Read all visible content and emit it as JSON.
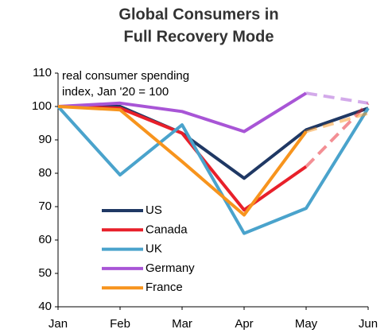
{
  "chart_data": {
    "type": "line",
    "title": [
      "Global Consumers in",
      "Full Recovery Mode"
    ],
    "annotation": [
      "real consumer spending",
      "index, Jan '20 = 100"
    ],
    "categories": [
      "Jan",
      "Feb",
      "Mar",
      "Apr",
      "May",
      "Jun"
    ],
    "series": [
      {
        "name": "US",
        "color": "#1f3864",
        "values": [
          100,
          100,
          92,
          78.5,
          93,
          99.5
        ],
        "dashed_tail": false
      },
      {
        "name": "Canada",
        "color": "#e8202a",
        "values": [
          100,
          99.5,
          92,
          69,
          82,
          101
        ],
        "dashed_tail": true
      },
      {
        "name": "UK",
        "color": "#4aa3cc",
        "values": [
          100,
          79.5,
          94.5,
          62,
          69.5,
          99.5
        ],
        "dashed_tail": false
      },
      {
        "name": "Germany",
        "color": "#a855d6",
        "values": [
          100,
          101,
          98.5,
          92.5,
          104,
          101
        ],
        "dashed_tail": true
      },
      {
        "name": "France",
        "color": "#f7941d",
        "values": [
          100,
          99,
          83.5,
          67.5,
          92.5,
          98
        ],
        "dashed_tail": true
      }
    ],
    "ylim": [
      40,
      110
    ],
    "yticks": [
      40,
      50,
      60,
      70,
      80,
      90,
      100,
      110
    ],
    "grid": false,
    "legend": "lower left"
  }
}
